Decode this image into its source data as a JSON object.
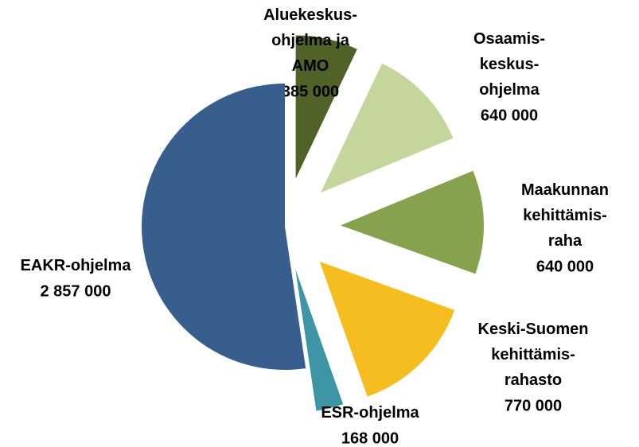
{
  "chart_data": {
    "type": "pie",
    "categories": [
      "Aluekeskus-\nohjelma  ja\nAMO",
      "Osaamis-\nkeskus-\nohjelma",
      "Maakunnan\nkehittämis-\nraha",
      "Keski-Suomen\nkehittämis-\nrahasto",
      "ESR-ohjelma",
      "EAKR-ohjelma"
    ],
    "values": [
      385000,
      640000,
      640000,
      770000,
      168000,
      2857000
    ],
    "value_labels": [
      "385 000",
      "640 000",
      "640 000",
      "770 000",
      "168 000",
      "2 857 000"
    ],
    "colors": [
      "#4f6228",
      "#c3d69b",
      "#86a24e",
      "#f5bd1f",
      "#3e95a5",
      "#375e8c"
    ]
  }
}
